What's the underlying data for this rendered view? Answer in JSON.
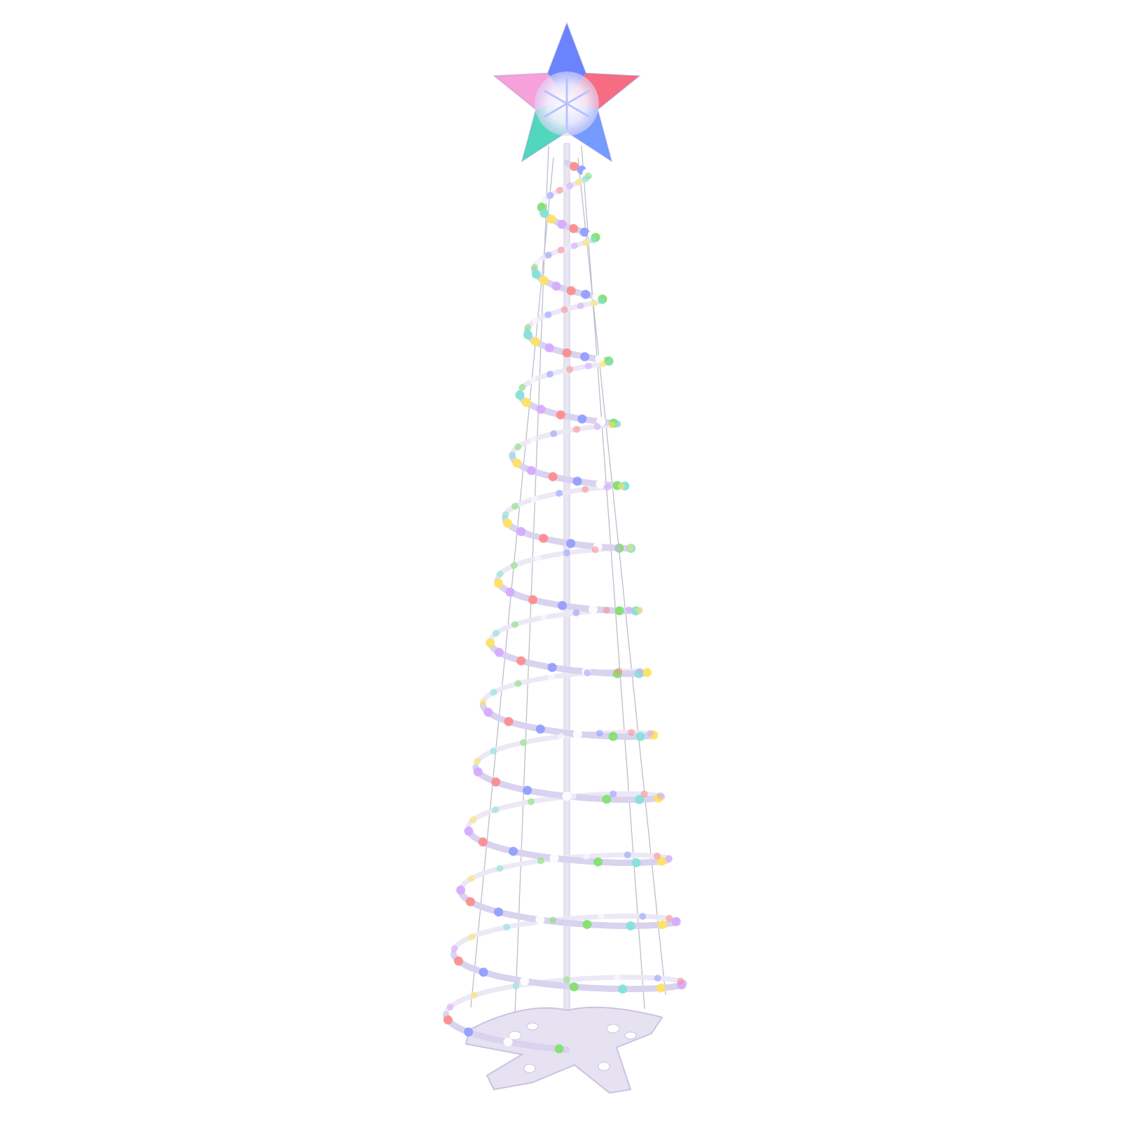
{
  "image": {
    "subject": "spiral-led-christmas-tree",
    "background_color": "#ffffff",
    "frame_color": "#e4e0f0",
    "guy_wire_color": "#b7b9c8",
    "pole_color": "#e9e6f2",
    "base_color": "#e6e2f1",
    "light_colors": [
      "#ff8a8a",
      "#ffe35c",
      "#7fe06a",
      "#8f9bff",
      "#d6a8ff",
      "#7fe3d6",
      "#ffffff"
    ],
    "star_colors": {
      "top": "#4f6fff",
      "left": "#ff8fd0",
      "right": "#ff4a5c",
      "bottom_left": "#2fd6b0",
      "bottom_right": "#5a8cff",
      "center": "#ffffff"
    }
  }
}
